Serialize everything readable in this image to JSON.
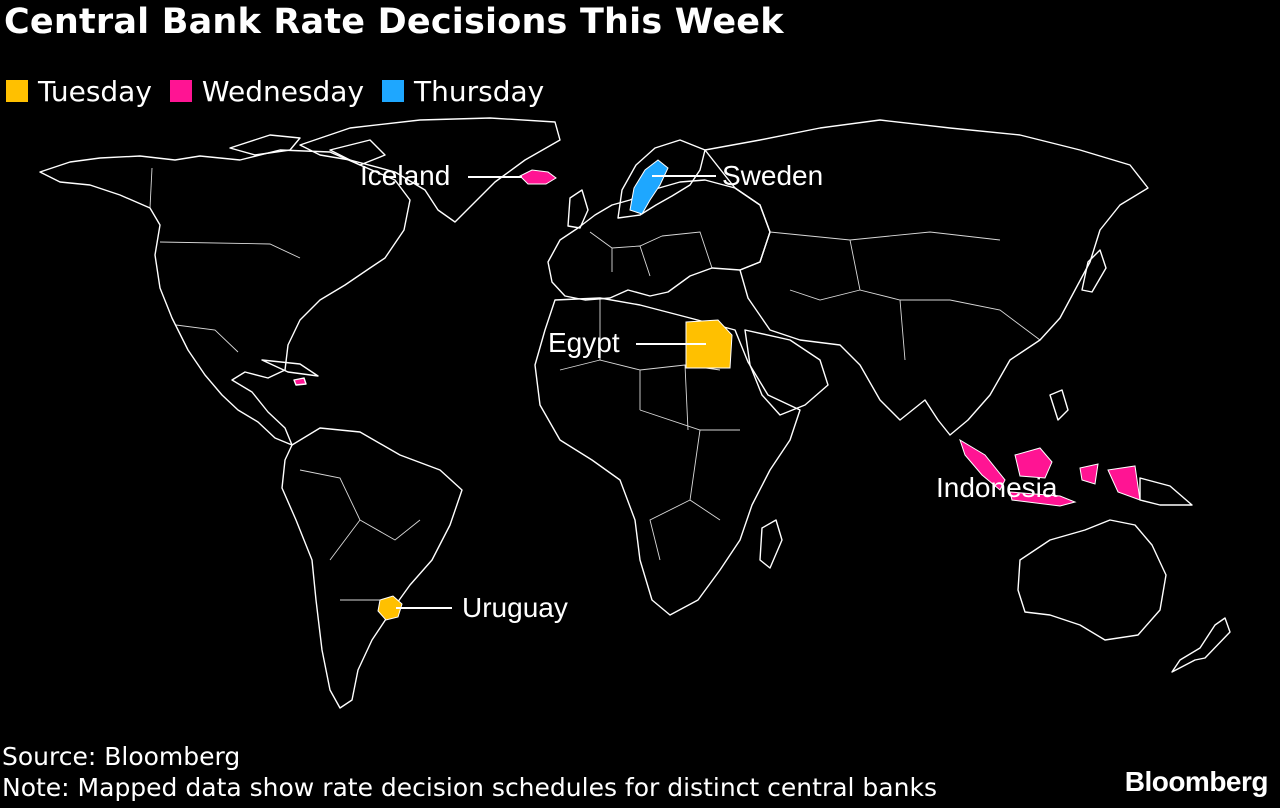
{
  "title": "Central Bank Rate Decisions This Week",
  "legend": [
    {
      "label": "Tuesday",
      "color": "#FFC000"
    },
    {
      "label": "Wednesday",
      "color": "#FF1493"
    },
    {
      "label": "Thursday",
      "color": "#1EA7FF"
    }
  ],
  "map": {
    "highlighted": [
      {
        "name": "Iceland",
        "day": "Wednesday"
      },
      {
        "name": "Sweden",
        "day": "Thursday"
      },
      {
        "name": "Egypt",
        "day": "Tuesday"
      },
      {
        "name": "Indonesia",
        "day": "Wednesday"
      },
      {
        "name": "Uruguay",
        "day": "Tuesday"
      }
    ]
  },
  "labels": {
    "iceland": "Iceland",
    "sweden": "Sweden",
    "egypt": "Egypt",
    "indonesia": "Indonesia",
    "uruguay": "Uruguay"
  },
  "footer": {
    "source": "Source: Bloomberg",
    "note": "Note: Mapped data show rate decision schedules for distinct central banks",
    "brand": "Bloomberg"
  }
}
